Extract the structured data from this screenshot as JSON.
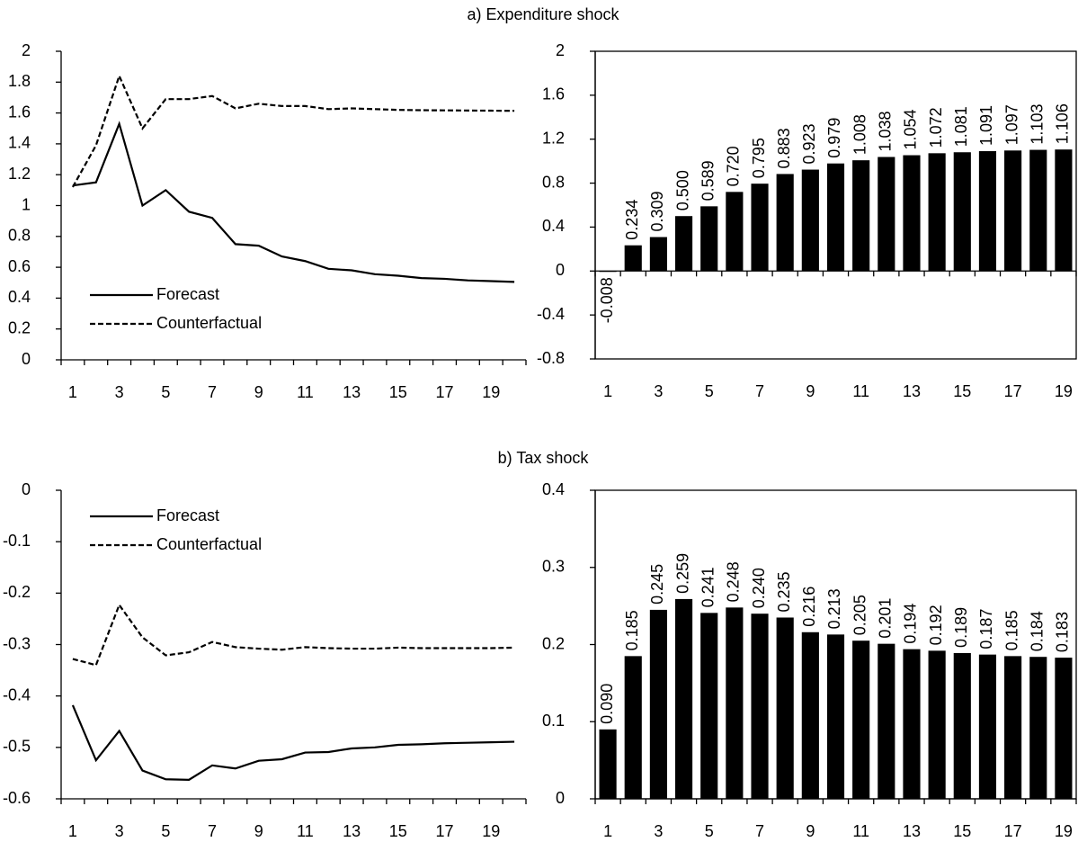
{
  "sections": [
    {
      "title": "a) Expenditure shock"
    },
    {
      "title": "b) Tax shock"
    }
  ],
  "chart_data": [
    {
      "type": "line",
      "categories": [
        "1",
        null,
        "3",
        null,
        "5",
        null,
        "7",
        null,
        "9",
        null,
        "11",
        null,
        "13",
        null,
        "15",
        null,
        "17",
        null,
        "19",
        null
      ],
      "series": [
        {
          "name": "Forecast",
          "color": "#000000",
          "style": "solid",
          "values": [
            1.13,
            1.15,
            1.53,
            1.0,
            1.1,
            0.96,
            0.92,
            0.75,
            0.74,
            0.67,
            0.64,
            0.59,
            0.58,
            0.555,
            0.545,
            0.53,
            0.525,
            0.515,
            0.51,
            0.505
          ]
        },
        {
          "name": "Counterfactual",
          "color": "#000000",
          "style": "dashed",
          "values": [
            1.12,
            1.39,
            1.84,
            1.5,
            1.69,
            1.69,
            1.71,
            1.63,
            1.66,
            1.645,
            1.645,
            1.625,
            1.63,
            1.625,
            1.62,
            1.618,
            1.617,
            1.616,
            1.615,
            1.614
          ]
        }
      ],
      "ylim": [
        0,
        2
      ],
      "yticks": [
        0,
        0.2,
        0.4,
        0.6,
        0.8,
        1,
        1.2,
        1.4,
        1.6,
        1.8,
        2
      ],
      "legend": "lower left"
    },
    {
      "type": "bar",
      "categories": [
        "1",
        null,
        "3",
        null,
        "5",
        null,
        "7",
        null,
        "9",
        null,
        "11",
        null,
        "13",
        null,
        "15",
        null,
        "17",
        null,
        "19"
      ],
      "values": [
        -0.008,
        0.234,
        0.309,
        0.5,
        0.589,
        0.72,
        0.795,
        0.883,
        0.923,
        0.979,
        1.008,
        1.038,
        1.054,
        1.072,
        1.081,
        1.091,
        1.097,
        1.103,
        1.106
      ],
      "value_labels": [
        "-0.008",
        "0.234",
        "0.309",
        "0.500",
        "0.589",
        "0.720",
        "0.795",
        "0.883",
        "0.923",
        "0.979",
        "1.008",
        "1.038",
        "1.054",
        "1.072",
        "1.081",
        "1.091",
        "1.097",
        "1.103",
        "1.106"
      ],
      "color": "#000000",
      "ylim": [
        -0.8,
        2
      ],
      "yticks": [
        -0.8,
        -0.4,
        0,
        0.4,
        0.8,
        1.2,
        1.6,
        2
      ],
      "frame": true
    },
    {
      "type": "line",
      "categories": [
        "1",
        null,
        "3",
        null,
        "5",
        null,
        "7",
        null,
        "9",
        null,
        "11",
        null,
        "13",
        null,
        "15",
        null,
        "17",
        null,
        "19",
        null
      ],
      "series": [
        {
          "name": "Forecast",
          "color": "#000000",
          "style": "solid",
          "values": [
            -0.418,
            -0.525,
            -0.468,
            -0.545,
            -0.562,
            -0.563,
            -0.535,
            -0.541,
            -0.526,
            -0.523,
            -0.51,
            -0.509,
            -0.502,
            -0.5,
            -0.495,
            -0.494,
            -0.492,
            -0.491,
            -0.49,
            -0.489
          ]
        },
        {
          "name": "Counterfactual",
          "color": "#000000",
          "style": "dashed",
          "values": [
            -0.328,
            -0.34,
            -0.223,
            -0.286,
            -0.321,
            -0.315,
            -0.295,
            -0.305,
            -0.308,
            -0.31,
            -0.305,
            -0.307,
            -0.308,
            -0.308,
            -0.306,
            -0.307,
            -0.307,
            -0.307,
            -0.307,
            -0.306
          ]
        }
      ],
      "ylim": [
        -0.6,
        0
      ],
      "yticks": [
        -0.6,
        -0.5,
        -0.4,
        -0.3,
        -0.2,
        -0.1,
        0
      ],
      "legend": "upper left"
    },
    {
      "type": "bar",
      "categories": [
        "1",
        null,
        "3",
        null,
        "5",
        null,
        "7",
        null,
        "9",
        null,
        "11",
        null,
        "13",
        null,
        "15",
        null,
        "17",
        null,
        "19"
      ],
      "values": [
        0.09,
        0.185,
        0.245,
        0.259,
        0.241,
        0.248,
        0.24,
        0.235,
        0.216,
        0.213,
        0.205,
        0.201,
        0.194,
        0.192,
        0.189,
        0.187,
        0.185,
        0.184,
        0.183
      ],
      "value_labels": [
        "0.090",
        "0.185",
        "0.245",
        "0.259",
        "0.241",
        "0.248",
        "0.240",
        "0.235",
        "0.216",
        "0.213",
        "0.205",
        "0.201",
        "0.194",
        "0.192",
        "0.189",
        "0.187",
        "0.185",
        "0.184",
        "0.183"
      ],
      "color": "#000000",
      "ylim": [
        0,
        0.4
      ],
      "yticks": [
        0,
        0.1,
        0.2,
        0.3,
        0.4
      ],
      "frame": true
    }
  ]
}
